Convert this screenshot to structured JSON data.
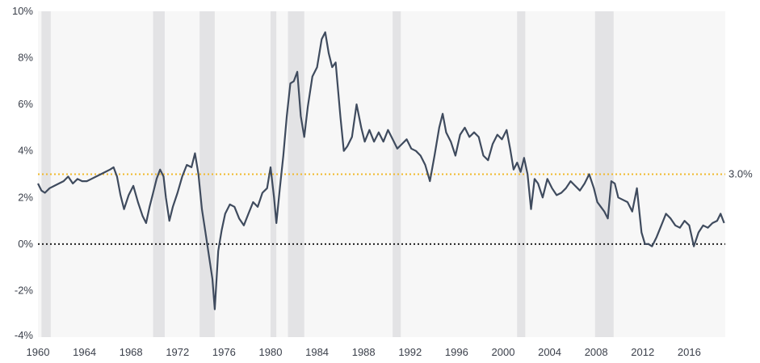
{
  "chart_data": {
    "type": "line",
    "title": "",
    "xlabel": "",
    "ylabel": "",
    "xlim": [
      1960,
      2019.1
    ],
    "ylim": [
      -4,
      10
    ],
    "x_ticks": [
      1960,
      1964,
      1968,
      1972,
      1976,
      1980,
      1984,
      1988,
      1992,
      1996,
      2000,
      2004,
      2008,
      2012,
      2016
    ],
    "x_tick_labels": [
      "1960",
      "1964",
      "1968",
      "1972",
      "1976",
      "1980",
      "1984",
      "1988",
      "1992",
      "1996",
      "2000",
      "2004",
      "2008",
      "2012",
      "2016"
    ],
    "y_ticks": [
      -4,
      -2,
      0,
      2,
      4,
      6,
      8,
      10
    ],
    "y_tick_labels": [
      "-4%",
      "-2%",
      "0%",
      "2%",
      "4%",
      "6%",
      "8%",
      "10%"
    ],
    "grid": false,
    "legend": "none",
    "colors": {
      "line": "#3f4b5e",
      "plot_bg": "#f7f7f7",
      "recession": "#e3e3e5",
      "ref_line": "#f0b92b",
      "zero_line": "#222222"
    },
    "recessions": [
      [
        1960.3,
        1961.1
      ],
      [
        1969.9,
        1970.9
      ],
      [
        1973.9,
        1975.2
      ],
      [
        1980.0,
        1980.5
      ],
      [
        1981.5,
        1982.9
      ],
      [
        1990.5,
        1991.2
      ],
      [
        2001.2,
        2001.9
      ],
      [
        2007.9,
        2009.5
      ]
    ],
    "reference_lines": [
      {
        "y": 3.0,
        "label": "3.0%",
        "style": "dotted",
        "color": "#f0b92b"
      },
      {
        "y": 0,
        "label": "",
        "style": "dotted",
        "color": "#222222"
      }
    ],
    "series": [
      {
        "x": [
          1960.0,
          1960.3,
          1960.6,
          1961.0,
          1961.4,
          1961.8,
          1962.2,
          1962.6,
          1963.0,
          1963.4,
          1963.8,
          1964.2,
          1964.6,
          1965.0,
          1965.4,
          1965.8,
          1966.2,
          1966.5,
          1966.8,
          1967.1,
          1967.4,
          1967.8,
          1968.2,
          1968.6,
          1969.0,
          1969.3,
          1969.6,
          1969.9,
          1970.2,
          1970.5,
          1970.8,
          1971.0,
          1971.3,
          1971.6,
          1972.0,
          1972.4,
          1972.8,
          1973.2,
          1973.5,
          1973.8,
          1974.1,
          1974.4,
          1974.7,
          1975.0,
          1975.2,
          1975.5,
          1975.8,
          1976.1,
          1976.5,
          1976.9,
          1977.3,
          1977.7,
          1978.1,
          1978.5,
          1978.9,
          1979.3,
          1979.7,
          1980.0,
          1980.3,
          1980.5,
          1980.8,
          1981.1,
          1981.4,
          1981.7,
          1982.0,
          1982.3,
          1982.6,
          1982.9,
          1983.2,
          1983.6,
          1984.0,
          1984.4,
          1984.7,
          1985.0,
          1985.3,
          1985.6,
          1986.0,
          1986.3,
          1986.6,
          1987.0,
          1987.4,
          1987.8,
          1988.1,
          1988.5,
          1988.9,
          1989.3,
          1989.7,
          1990.1,
          1990.5,
          1990.9,
          1991.3,
          1991.7,
          1992.1,
          1992.5,
          1992.9,
          1993.3,
          1993.7,
          1994.1,
          1994.5,
          1994.8,
          1995.1,
          1995.5,
          1995.9,
          1996.3,
          1996.7,
          1997.1,
          1997.5,
          1997.9,
          1998.3,
          1998.7,
          1999.1,
          1999.5,
          1999.9,
          2000.3,
          2000.6,
          2000.9,
          2001.2,
          2001.5,
          2001.8,
          2002.1,
          2002.4,
          2002.7,
          2003.0,
          2003.4,
          2003.8,
          2004.2,
          2004.6,
          2005.0,
          2005.4,
          2005.8,
          2006.2,
          2006.6,
          2007.0,
          2007.4,
          2007.8,
          2008.1,
          2008.4,
          2008.7,
          2009.0,
          2009.3,
          2009.6,
          2009.9,
          2010.3,
          2010.7,
          2011.1,
          2011.5,
          2011.9,
          2012.2,
          2012.5,
          2012.8,
          2013.2,
          2013.6,
          2014.0,
          2014.4,
          2014.8,
          2015.2,
          2015.6,
          2016.0,
          2016.4,
          2016.8,
          2017.2,
          2017.6,
          2018.0,
          2018.4,
          2018.7,
          2019.0
        ],
        "values": [
          2.6,
          2.3,
          2.2,
          2.4,
          2.5,
          2.6,
          2.7,
          2.9,
          2.6,
          2.8,
          2.7,
          2.7,
          2.8,
          2.9,
          3.0,
          3.1,
          3.2,
          3.3,
          2.9,
          2.1,
          1.5,
          2.1,
          2.5,
          1.8,
          1.2,
          0.9,
          1.6,
          2.2,
          2.8,
          3.2,
          2.9,
          2.0,
          1.0,
          1.6,
          2.2,
          2.9,
          3.4,
          3.3,
          3.9,
          3.0,
          1.5,
          0.5,
          -0.5,
          -1.5,
          -2.8,
          -0.3,
          0.6,
          1.3,
          1.7,
          1.6,
          1.1,
          0.8,
          1.3,
          1.8,
          1.6,
          2.2,
          2.4,
          3.3,
          2.0,
          0.9,
          2.4,
          3.8,
          5.5,
          6.9,
          7.0,
          7.4,
          5.5,
          4.6,
          5.9,
          7.2,
          7.6,
          8.8,
          9.1,
          8.2,
          7.6,
          7.8,
          5.5,
          4.0,
          4.2,
          4.6,
          6.0,
          5.0,
          4.4,
          4.9,
          4.4,
          4.8,
          4.4,
          4.9,
          4.5,
          4.1,
          4.3,
          4.5,
          4.1,
          4.0,
          3.8,
          3.4,
          2.7,
          3.8,
          5.0,
          5.6,
          4.8,
          4.4,
          3.8,
          4.7,
          5.0,
          4.6,
          4.8,
          4.6,
          3.8,
          3.6,
          4.3,
          4.7,
          4.5,
          4.9,
          4.1,
          3.2,
          3.5,
          3.1,
          3.7,
          3.0,
          1.5,
          2.8,
          2.6,
          2.0,
          2.8,
          2.4,
          2.1,
          2.2,
          2.4,
          2.7,
          2.5,
          2.3,
          2.6,
          3.0,
          2.4,
          1.8,
          1.6,
          1.4,
          1.1,
          2.7,
          2.6,
          2.0,
          1.9,
          1.8,
          1.4,
          2.4,
          0.5,
          0.0,
          0.0,
          -0.1,
          0.3,
          0.8,
          1.3,
          1.1,
          0.8,
          0.7,
          1.0,
          0.8,
          -0.1,
          0.5,
          0.8,
          0.7,
          0.9,
          1.0,
          1.3,
          0.9
        ]
      }
    ]
  }
}
